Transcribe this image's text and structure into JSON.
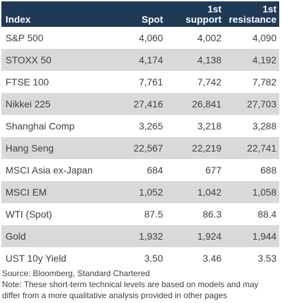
{
  "header": {
    "col0": "Index",
    "col1": "Spot",
    "col2_line1": "1st",
    "col2_line2": "support",
    "col3_line1": "1st",
    "col3_line2": "resistance"
  },
  "rows": [
    {
      "index": "S&P 500",
      "spot": "4,060",
      "support": "4,002",
      "resistance": "4,090"
    },
    {
      "index": "STOXX 50",
      "spot": "4,174",
      "support": "4,138",
      "resistance": "4,192"
    },
    {
      "index": "FTSE 100",
      "spot": "7,761",
      "support": "7,742",
      "resistance": "7,782"
    },
    {
      "index": "Nikkei 225",
      "spot": "27,416",
      "support": "26,841",
      "resistance": "27,703"
    },
    {
      "index": "Shanghai Comp",
      "spot": "3,265",
      "support": "3,218",
      "resistance": "3,288"
    },
    {
      "index": "Hang Seng",
      "spot": "22,567",
      "support": "22,219",
      "resistance": "22,741"
    },
    {
      "index": "MSCI Asia ex-Japan",
      "spot": "684",
      "support": "677",
      "resistance": "688"
    },
    {
      "index": "MSCI EM",
      "spot": "1,052",
      "support": "1,042",
      "resistance": "1,058"
    },
    {
      "index": "WTI (Spot)",
      "spot": "87.5",
      "support": "86.3",
      "resistance": "88.4"
    },
    {
      "index": "Gold",
      "spot": "1,932",
      "support": "1,924",
      "resistance": "1,944"
    },
    {
      "index": "UST 10y Yield",
      "spot": "3.50",
      "support": "3.46",
      "resistance": "3.53"
    }
  ],
  "notes": {
    "source": "Source: Bloomberg, Standard Chartered",
    "note_line1": "Note: These short-term technical levels are based on models and may",
    "note_line2": "differ from a more qualitative analysis provided in other pages"
  },
  "colors": {
    "header_bg": "#1e3a55",
    "shade_row_bg": "#d9d9d9",
    "text": "#404040"
  }
}
